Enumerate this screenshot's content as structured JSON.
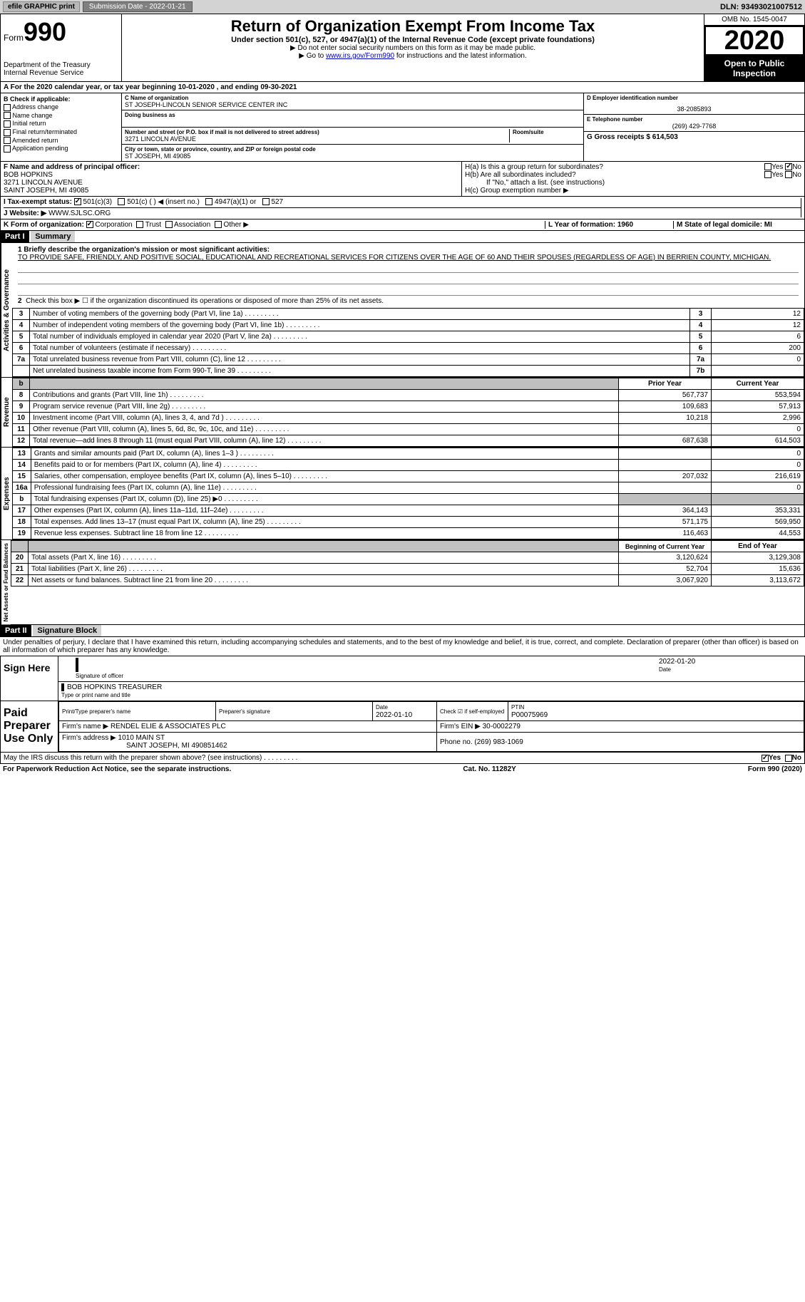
{
  "topbar": {
    "efile": "efile GRAPHIC print",
    "submission": "Submission Date - 2022-01-21",
    "dln": "DLN: 93493021007512"
  },
  "header": {
    "form_label": "Form",
    "form_num": "990",
    "dept": "Department of the Treasury",
    "irs": "Internal Revenue Service",
    "title": "Return of Organization Exempt From Income Tax",
    "subtitle": "Under section 501(c), 527, or 4947(a)(1) of the Internal Revenue Code (except private foundations)",
    "note1": "▶ Do not enter social security numbers on this form as it may be made public.",
    "note2_pre": "▶ Go to ",
    "note2_link": "www.irs.gov/Form990",
    "note2_post": " for instructions and the latest information.",
    "omb": "OMB No. 1545-0047",
    "year": "2020",
    "open": "Open to Public Inspection"
  },
  "section_a": "A For the 2020 calendar year, or tax year beginning 10-01-2020     , and ending 09-30-2021",
  "col_b": {
    "title": "B Check if applicable:",
    "items": [
      "Address change",
      "Name change",
      "Initial return",
      "Final return/terminated",
      "Amended return",
      "Application pending"
    ]
  },
  "col_c": {
    "name_label": "C Name of organization",
    "name": "ST JOSEPH-LINCOLN SENIOR SERVICE CENTER INC",
    "dba_label": "Doing business as",
    "addr_label": "Number and street (or P.O. box if mail is not delivered to street address)",
    "addr": "3271 LINCOLN AVENUE",
    "room_label": "Room/suite",
    "city_label": "City or town, state or province, country, and ZIP or foreign postal code",
    "city": "ST JOSEPH, MI  49085"
  },
  "col_d": {
    "ein_label": "D Employer identification number",
    "ein": "38-2085893",
    "phone_label": "E Telephone number",
    "phone": "(269) 429-7768",
    "gross_label": "G Gross receipts $ 614,503"
  },
  "row_f": {
    "label": "F Name and address of principal officer:",
    "name": "BOB HOPKINS",
    "addr1": "3271 LINCOLN AVENUE",
    "addr2": "SAINT JOSEPH, MI  49085"
  },
  "row_h": {
    "ha": "H(a)  Is this a group return for subordinates?",
    "hb": "H(b)  Are all subordinates included?",
    "hb_note": "If \"No,\" attach a list. (see instructions)",
    "hc": "H(c)  Group exemption number ▶",
    "yes": "Yes",
    "no": "No"
  },
  "row_i": {
    "label": "I  Tax-exempt status:",
    "opts": [
      "501(c)(3)",
      "501(c) (  ) ◀ (insert no.)",
      "4947(a)(1) or",
      "527"
    ]
  },
  "row_j": {
    "label": "J  Website: ▶",
    "val": "WWW.SJLSC.ORG"
  },
  "row_k": {
    "label": "K Form of organization:",
    "opts": [
      "Corporation",
      "Trust",
      "Association",
      "Other ▶"
    ]
  },
  "row_lm": {
    "l": "L Year of formation: 1960",
    "m": "M State of legal domicile: MI"
  },
  "part1": {
    "header": "Part I",
    "title": "Summary",
    "q1": "1  Briefly describe the organization's mission or most significant activities:",
    "mission": "TO PROVIDE SAFE, FRIENDLY, AND POSITIVE SOCIAL, EDUCATIONAL AND RECREATIONAL SERVICES FOR CITIZENS OVER THE AGE OF 60 AND THEIR SPOUSES (REGARDLESS OF AGE) IN BERRIEN COUNTY, MICHIGAN.",
    "q2": "Check this box ▶ ☐  if the organization discontinued its operations or disposed of more than 25% of its net assets."
  },
  "sidebar": {
    "gov": "Activities & Governance",
    "rev": "Revenue",
    "exp": "Expenses",
    "net": "Net Assets or Fund Balances"
  },
  "gov_rows": [
    {
      "n": "3",
      "label": "Number of voting members of the governing body (Part VI, line 1a)",
      "box": "3",
      "val": "12"
    },
    {
      "n": "4",
      "label": "Number of independent voting members of the governing body (Part VI, line 1b)",
      "box": "4",
      "val": "12"
    },
    {
      "n": "5",
      "label": "Total number of individuals employed in calendar year 2020 (Part V, line 2a)",
      "box": "5",
      "val": "6"
    },
    {
      "n": "6",
      "label": "Total number of volunteers (estimate if necessary)",
      "box": "6",
      "val": "200"
    },
    {
      "n": "7a",
      "label": "Total unrelated business revenue from Part VIII, column (C), line 12",
      "box": "7a",
      "val": "0"
    },
    {
      "n": "",
      "label": "Net unrelated business taxable income from Form 990-T, line 39",
      "box": "7b",
      "val": ""
    }
  ],
  "year_headers": {
    "b": "b",
    "prior": "Prior Year",
    "current": "Current Year"
  },
  "rev_rows": [
    {
      "n": "8",
      "label": "Contributions and grants (Part VIII, line 1h)",
      "py": "567,737",
      "cy": "553,594"
    },
    {
      "n": "9",
      "label": "Program service revenue (Part VIII, line 2g)",
      "py": "109,683",
      "cy": "57,913"
    },
    {
      "n": "10",
      "label": "Investment income (Part VIII, column (A), lines 3, 4, and 7d )",
      "py": "10,218",
      "cy": "2,996"
    },
    {
      "n": "11",
      "label": "Other revenue (Part VIII, column (A), lines 5, 6d, 8c, 9c, 10c, and 11e)",
      "py": "",
      "cy": "0"
    },
    {
      "n": "12",
      "label": "Total revenue—add lines 8 through 11 (must equal Part VIII, column (A), line 12)",
      "py": "687,638",
      "cy": "614,503"
    }
  ],
  "exp_rows": [
    {
      "n": "13",
      "label": "Grants and similar amounts paid (Part IX, column (A), lines 1–3 )",
      "py": "",
      "cy": "0"
    },
    {
      "n": "14",
      "label": "Benefits paid to or for members (Part IX, column (A), line 4)",
      "py": "",
      "cy": "0"
    },
    {
      "n": "15",
      "label": "Salaries, other compensation, employee benefits (Part IX, column (A), lines 5–10)",
      "py": "207,032",
      "cy": "216,619"
    },
    {
      "n": "16a",
      "label": "Professional fundraising fees (Part IX, column (A), line 11e)",
      "py": "",
      "cy": "0"
    },
    {
      "n": "b",
      "label": "Total fundraising expenses (Part IX, column (D), line 25) ▶0",
      "py": "grey",
      "cy": "grey"
    },
    {
      "n": "17",
      "label": "Other expenses (Part IX, column (A), lines 11a–11d, 11f–24e)",
      "py": "364,143",
      "cy": "353,331"
    },
    {
      "n": "18",
      "label": "Total expenses. Add lines 13–17 (must equal Part IX, column (A), line 25)",
      "py": "571,175",
      "cy": "569,950"
    },
    {
      "n": "19",
      "label": "Revenue less expenses. Subtract line 18 from line 12",
      "py": "116,463",
      "cy": "44,553"
    }
  ],
  "net_headers": {
    "begin": "Beginning of Current Year",
    "end": "End of Year"
  },
  "net_rows": [
    {
      "n": "20",
      "label": "Total assets (Part X, line 16)",
      "py": "3,120,624",
      "cy": "3,129,308"
    },
    {
      "n": "21",
      "label": "Total liabilities (Part X, line 26)",
      "py": "52,704",
      "cy": "15,636"
    },
    {
      "n": "22",
      "label": "Net assets or fund balances. Subtract line 21 from line 20",
      "py": "3,067,920",
      "cy": "3,113,672"
    }
  ],
  "part2": {
    "header": "Part II",
    "title": "Signature Block",
    "declaration": "Under penalties of perjury, I declare that I have examined this return, including accompanying schedules and statements, and to the best of my knowledge and belief, it is true, correct, and complete. Declaration of preparer (other than officer) is based on all information of which preparer has any knowledge."
  },
  "sign": {
    "label": "Sign Here",
    "sig_officer": "Signature of officer",
    "date": "Date",
    "sig_date": "2022-01-20",
    "name": "BOB HOPKINS  TREASURER",
    "name_label": "Type or print name and title"
  },
  "preparer": {
    "label": "Paid Preparer Use Only",
    "print_name": "Print/Type preparer's name",
    "sig": "Preparer's signature",
    "date_label": "Date",
    "date": "2022-01-10",
    "self_emp": "Check ☑ if self-employed",
    "ptin_label": "PTIN",
    "ptin": "P00075969",
    "firm_name_label": "Firm's name    ▶",
    "firm_name": "RENDEL ELIE & ASSOCIATES PLC",
    "firm_ein_label": "Firm's EIN ▶",
    "firm_ein": "30-0002279",
    "firm_addr_label": "Firm's address ▶",
    "firm_addr": "1010 MAIN ST",
    "firm_addr2": "SAINT JOSEPH, MI  490851462",
    "phone_label": "Phone no.",
    "phone": "(269) 983-1069"
  },
  "discuss": "May the IRS discuss this return with the preparer shown above? (see instructions)",
  "footer": {
    "left": "For Paperwork Reduction Act Notice, see the separate instructions.",
    "mid": "Cat. No. 11282Y",
    "right": "Form 990 (2020)"
  }
}
